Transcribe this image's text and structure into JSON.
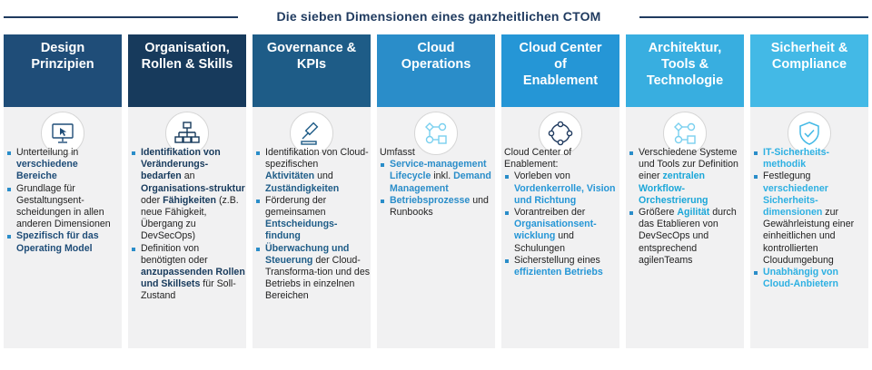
{
  "title": "Die sieben Dimensionen eines ganzheitlichen CTOM",
  "columns": [
    {
      "header": "Design\nPrinzipien",
      "color": "#1f4d78",
      "icon": "monitor-cursor-icon",
      "items": [
        [
          "Unterteilung in ",
          {
            "b": "verschiedene Bereiche"
          }
        ],
        [
          "Grundlage für Gestaltungsent-scheidungen in allen anderen Dimensionen"
        ],
        [
          {
            "b": "Spezifisch für das Operating Model"
          }
        ]
      ]
    },
    {
      "header": "Organisation,\nRollen & Skills",
      "color": "#173a5c",
      "icon": "org-chart-icon",
      "items": [
        [
          {
            "b": "Identifikation von Veränderungs-bedarfen"
          },
          " an ",
          {
            "b": "Organisations-struktur"
          },
          " oder ",
          {
            "b": "Fähigkeiten"
          },
          " (z.B. neue Fähigkeit, Übergang zu DevSecOps)"
        ],
        [
          "Definition von benötigten oder ",
          {
            "b": "anzupassenden Rollen und Skillsets"
          },
          " für Soll-Zustand"
        ]
      ]
    },
    {
      "header": "Governance &\nKPIs",
      "color": "#1e5c87",
      "icon": "gavel-icon",
      "items": [
        [
          "Identifikation von Cloud-spezifischen ",
          {
            "b": "Aktivitäten"
          },
          " und ",
          {
            "b": "Zuständigkeiten"
          }
        ],
        [
          "Förderung der gemeinsamen ",
          {
            "b": "Entscheidungs-findung"
          }
        ],
        [
          {
            "b": "Überwachung und Steuerung"
          },
          " der Cloud-Transforma-tion und des Betriebs in einzelnen Bereichen"
        ]
      ]
    },
    {
      "header": "Cloud\nOperations",
      "color": "#2a8dc9",
      "icon": "workflow-icon",
      "intro": "Umfasst",
      "items": [
        [
          {
            "b": "Service-management Lifecycle"
          },
          " inkl. ",
          {
            "b": "Demand Management"
          }
        ],
        [
          {
            "b": "Betriebsprozesse"
          },
          " und Runbooks"
        ]
      ]
    },
    {
      "header": "Cloud Center\nof\nEnablement",
      "color": "#2596d6",
      "icon": "cycle-nodes-icon",
      "intro": "Cloud Center of Enablement:",
      "items": [
        [
          "Vorleben von ",
          {
            "b": "Vordenkerrolle, Vision und Richtung"
          }
        ],
        [
          "Vorantreiben der ",
          {
            "b": "Organisationsent-wicklung"
          },
          " und Schulungen"
        ],
        [
          "Sicherstellung eines ",
          {
            "b": "effizienten Betriebs"
          }
        ]
      ]
    },
    {
      "header": "Architektur,\nTools &\nTechnologie",
      "color": "#38aee0",
      "icon": "workflow-icon",
      "items": [
        [
          "Verschiedene Systeme und Tools zur Definition einer ",
          {
            "b": "zentralen Workflow-Orchestrierung"
          }
        ],
        [
          "Größere ",
          {
            "b": "Agilität"
          },
          " durch das Etablieren von DevSecOps und entsprechend agilenTeams"
        ]
      ]
    },
    {
      "header": "Sicherheit &\nCompliance",
      "color": "#43b9e6",
      "icon": "shield-check-icon",
      "items": [
        [
          {
            "b": "IT-Sicherheits-methodik"
          }
        ],
        [
          "Festlegung ",
          {
            "b": "verschiedener Sicherheits-dimensionen"
          },
          " zur Gewährleistung einer einheitlichen und kontrollierten Cloudumgebung"
        ],
        [
          {
            "b": "Unabhängig von Cloud-Anbietern"
          }
        ]
      ]
    }
  ]
}
